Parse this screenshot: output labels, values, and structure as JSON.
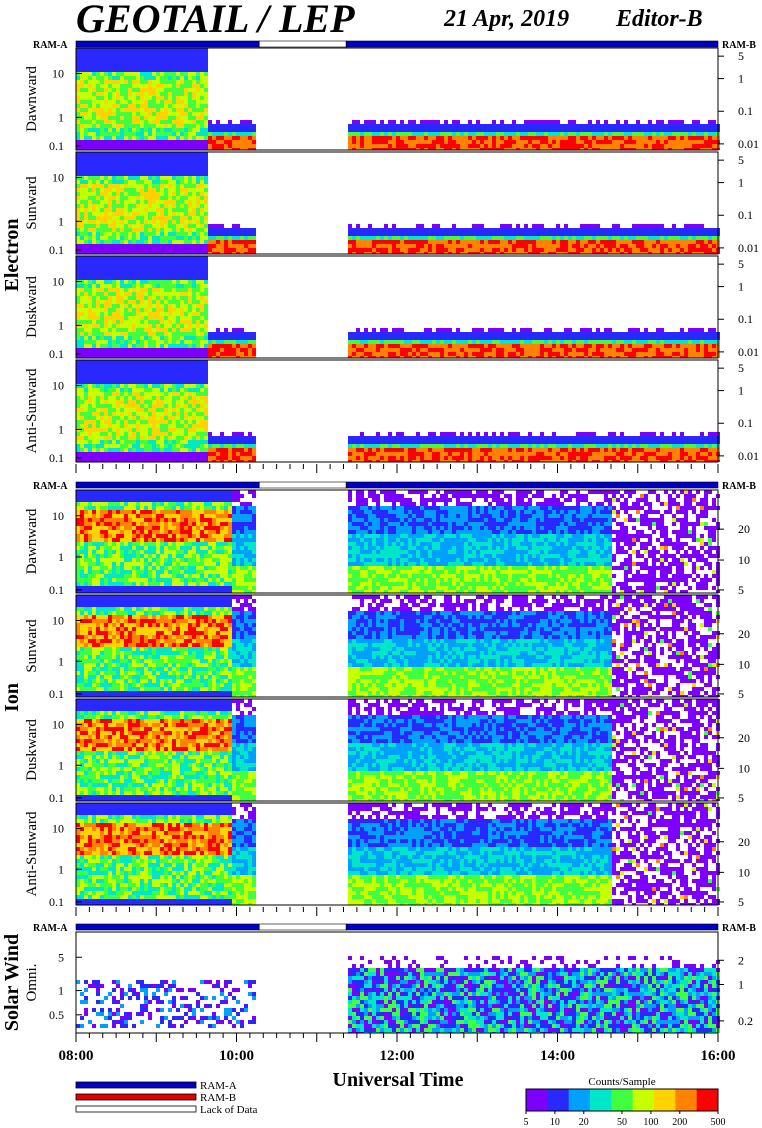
{
  "title": "GEOTAIL / LEP",
  "date": "21 Apr, 2019",
  "editor": "Editor-B",
  "ram_labels": {
    "a": "RAM-A",
    "b": "RAM-B"
  },
  "groups": [
    {
      "name": "Electron",
      "panels": [
        "Dawnward",
        "Sunward",
        "Duskward",
        "Anti-Sunward"
      ],
      "left_ticks": [
        "10",
        "1",
        "0.1"
      ],
      "right_ticks": [
        "5",
        "1",
        "0.1",
        "0.01"
      ]
    },
    {
      "name": "Ion",
      "panels": [
        "Dawnward",
        "Sunward",
        "Duskward",
        "Anti-Sunward"
      ],
      "left_ticks": [
        "10",
        "1",
        "0.1"
      ],
      "right_ticks": [
        "20",
        "10",
        "5"
      ]
    },
    {
      "name": "Solar Wind",
      "panels": [
        "Omni."
      ],
      "left_ticks": [
        "5",
        "1",
        "0.5"
      ],
      "right_ticks": [
        "2",
        "1",
        "0.2"
      ]
    }
  ],
  "chart_data": {
    "type": "heatmap",
    "xlabel": "Universal Time",
    "x_ticks": [
      "08:00",
      "10:00",
      "12:00",
      "14:00",
      "16:00"
    ],
    "xlim": [
      "08:00",
      "16:00"
    ],
    "data_gap": [
      "10:17",
      "11:22"
    ],
    "ram_status": [
      {
        "start": "08:00",
        "end": "10:17",
        "state": "RAM-A"
      },
      {
        "start": "10:17",
        "end": "11:22",
        "state": "Lack of Data"
      },
      {
        "start": "11:22",
        "end": "16:00",
        "state": "RAM-A"
      }
    ],
    "colorbar": {
      "title": "Counts/Sample",
      "ticks": [
        "5",
        "10",
        "20",
        "50",
        "100",
        "200",
        "500"
      ],
      "colors": [
        "#7d00ff",
        "#2828ff",
        "#00a0ff",
        "#00e6c8",
        "#40ff40",
        "#c8ff00",
        "#ffd200",
        "#ff8200",
        "#ff0000"
      ]
    }
  },
  "legend": [
    {
      "label": "RAM-A",
      "color": "#0000c8"
    },
    {
      "label": "RAM-B",
      "color": "#e60000"
    },
    {
      "label": "Lack of Data",
      "color": "#ffffff"
    }
  ]
}
